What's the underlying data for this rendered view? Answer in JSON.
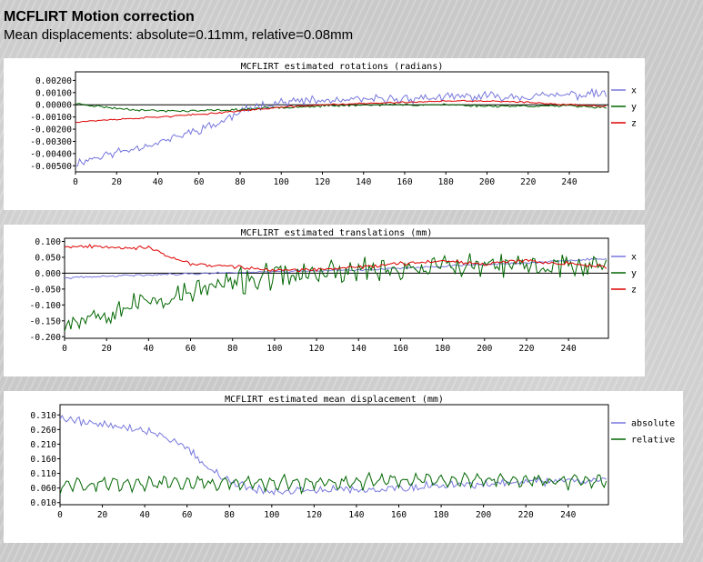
{
  "report": {
    "title": "MCFLIRT Motion correction",
    "subtitle": "Mean displacements: absolute=0.11mm, relative=0.08mm"
  },
  "colors": {
    "x": "#7777dd",
    "y": "#006600",
    "z": "#dd0000",
    "absolute": "#7777dd",
    "relative": "#006600"
  },
  "chart_data": [
    {
      "type": "line",
      "title": "MCFLIRT estimated rotations (radians)",
      "xlim": [
        0,
        259
      ],
      "ylim": [
        -0.0055,
        0.0027
      ],
      "yticks": [
        "0.00200",
        "0.00100",
        "0.00000",
        "-0.00100",
        "-0.00200",
        "-0.00300",
        "-0.00400",
        "-0.00500"
      ],
      "ytick_values": [
        0.002,
        0.001,
        0,
        -0.001,
        -0.002,
        -0.003,
        -0.004,
        -0.005
      ],
      "xticks": [
        0,
        20,
        40,
        60,
        80,
        100,
        120,
        140,
        160,
        180,
        200,
        220,
        240
      ],
      "zero_line": true,
      "legend_position": "right",
      "series": [
        {
          "name": "x",
          "color": "#7777dd",
          "noise": 0.00045,
          "seed": 11,
          "x": [
            0,
            10,
            20,
            30,
            40,
            50,
            60,
            70,
            80,
            90,
            100,
            110,
            120,
            140,
            160,
            180,
            200,
            220,
            240,
            258
          ],
          "values": [
            -0.0048,
            -0.0043,
            -0.0039,
            -0.0035,
            -0.0031,
            -0.0026,
            -0.002,
            -0.0015,
            -0.0006,
            0.0,
            0.0002,
            0.0003,
            0.0003,
            0.0004,
            0.0005,
            0.0006,
            0.0007,
            0.0007,
            0.0008,
            0.0009
          ]
        },
        {
          "name": "y",
          "color": "#006600",
          "noise": 0.00012,
          "seed": 23,
          "x": [
            0,
            20,
            40,
            60,
            80,
            100,
            120,
            140,
            160,
            180,
            200,
            220,
            240,
            258
          ],
          "values": [
            0.0001,
            -0.0003,
            -0.0005,
            -0.0005,
            -0.0004,
            -0.0002,
            -0.0001,
            0.0,
            0.0,
            0.0,
            -0.0001,
            -0.0001,
            -0.0001,
            -0.0002
          ]
        },
        {
          "name": "z",
          "color": "#dd0000",
          "noise": 8e-05,
          "seed": 37,
          "x": [
            0,
            20,
            40,
            60,
            80,
            100,
            120,
            140,
            160,
            180,
            200,
            220,
            240,
            258
          ],
          "values": [
            -0.0014,
            -0.0012,
            -0.001,
            -0.0008,
            -0.0005,
            -0.0002,
            0.0,
            0.0001,
            0.0002,
            0.0003,
            0.0003,
            0.0002,
            0.0,
            -0.0001
          ]
        }
      ]
    },
    {
      "type": "line",
      "title": "MCFLIRT estimated translations (mm)",
      "xlim": [
        0,
        259
      ],
      "ylim": [
        -0.205,
        0.11
      ],
      "yticks": [
        "0.100",
        "0.050",
        "0.000",
        "-0.050",
        "-0.100",
        "-0.150",
        "-0.200"
      ],
      "ytick_values": [
        0.1,
        0.05,
        0,
        -0.05,
        -0.1,
        -0.15,
        -0.2
      ],
      "xticks": [
        0,
        20,
        40,
        60,
        80,
        100,
        120,
        140,
        160,
        180,
        200,
        220,
        240
      ],
      "zero_line": true,
      "legend_position": "right",
      "series": [
        {
          "name": "x",
          "color": "#7777dd",
          "noise": 0.004,
          "seed": 41,
          "x": [
            0,
            20,
            40,
            60,
            80,
            100,
            120,
            140,
            160,
            180,
            200,
            220,
            240,
            258
          ],
          "values": [
            -0.015,
            -0.01,
            -0.005,
            -0.002,
            0.002,
            0.005,
            0.008,
            0.01,
            0.015,
            0.022,
            0.028,
            0.032,
            0.04,
            0.045
          ]
        },
        {
          "name": "y",
          "color": "#006600",
          "noise": 0.05,
          "seed": 53,
          "x": [
            0,
            20,
            40,
            60,
            80,
            100,
            120,
            140,
            160,
            180,
            200,
            220,
            240,
            258
          ],
          "values": [
            -0.15,
            -0.12,
            -0.09,
            -0.06,
            -0.03,
            -0.01,
            0.0,
            0.01,
            0.015,
            0.02,
            0.02,
            0.02,
            0.025,
            0.03
          ]
        },
        {
          "name": "z",
          "color": "#dd0000",
          "noise": 0.007,
          "seed": 67,
          "x": [
            0,
            20,
            30,
            40,
            50,
            60,
            70,
            80,
            100,
            120,
            140,
            160,
            180,
            200,
            220,
            240,
            258
          ],
          "values": [
            0.085,
            0.085,
            0.08,
            0.08,
            0.05,
            0.03,
            0.025,
            0.02,
            0.01,
            0.01,
            0.02,
            0.03,
            0.04,
            0.03,
            0.04,
            0.03,
            0.02
          ]
        }
      ]
    },
    {
      "type": "line",
      "title": "MCFLIRT estimated mean displacement (mm)",
      "xlim": [
        0,
        259
      ],
      "ylim": [
        0.003,
        0.345
      ],
      "yticks": [
        "0.310",
        "0.260",
        "0.210",
        "0.160",
        "0.110",
        "0.060",
        "0.010"
      ],
      "ytick_values": [
        0.31,
        0.26,
        0.21,
        0.16,
        0.11,
        0.06,
        0.01
      ],
      "xticks": [
        0,
        20,
        40,
        60,
        80,
        100,
        120,
        140,
        160,
        180,
        200,
        220,
        240
      ],
      "zero_line": false,
      "legend_position": "right",
      "series": [
        {
          "name": "absolute",
          "color": "#7777dd",
          "noise": 0.018,
          "seed": 79,
          "clamp_min": 0.005,
          "x": [
            0,
            10,
            20,
            30,
            40,
            50,
            60,
            70,
            80,
            90,
            100,
            110,
            120,
            140,
            160,
            180,
            200,
            220,
            240,
            258
          ],
          "values": [
            0.3,
            0.29,
            0.28,
            0.27,
            0.255,
            0.235,
            0.2,
            0.13,
            0.08,
            0.06,
            0.05,
            0.05,
            0.05,
            0.055,
            0.06,
            0.07,
            0.075,
            0.08,
            0.085,
            0.09
          ]
        },
        {
          "name": "relative",
          "color": "#006600",
          "noise": 0.018,
          "seed": 97,
          "clamp_min": 0.005,
          "oscillate": 0.04,
          "x": [
            0,
            40,
            80,
            120,
            160,
            200,
            240,
            258
          ],
          "values": [
            0.07,
            0.07,
            0.07,
            0.07,
            0.08,
            0.08,
            0.08,
            0.08
          ]
        }
      ]
    }
  ]
}
